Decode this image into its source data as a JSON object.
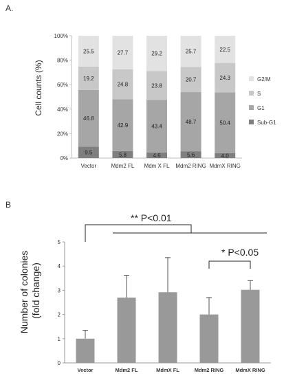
{
  "panel_labels": {
    "a": "A.",
    "b": "B"
  },
  "chart_data": [
    {
      "type": "bar",
      "stacked": true,
      "categories": [
        "Vector",
        "Mdm2 FL",
        "Mdm X FL",
        "Mdm2 RING",
        "MdmX RING"
      ],
      "series": [
        {
          "name": "Sub-G1",
          "values": [
            9.5,
            5.8,
            4.6,
            5.6,
            4.0
          ],
          "color": "#7f7f7f"
        },
        {
          "name": "G1",
          "values": [
            46.8,
            42.9,
            43.4,
            48.7,
            50.4
          ],
          "color": "#a6a6a6"
        },
        {
          "name": "S",
          "values": [
            19.2,
            24.8,
            23.8,
            20.7,
            24.3
          ],
          "color": "#c8c8c8"
        },
        {
          "name": "G2/M",
          "values": [
            25.5,
            27.7,
            29.2,
            25.7,
            22.5
          ],
          "color": "#e2e2e2"
        }
      ],
      "ylabel": "Cell counts (%)",
      "ylim": [
        0,
        100
      ],
      "yticks": [
        "0%",
        "20%",
        "40%",
        "60%",
        "80%",
        "100%"
      ],
      "legend": [
        "G2/M",
        "S",
        "G1",
        "Sub-G1"
      ],
      "legend_position": "right",
      "grid": false
    },
    {
      "type": "bar",
      "categories": [
        "Vector",
        "Mdm2 FL",
        "MdmX FL",
        "Mdm2 RING",
        "MdmX RING"
      ],
      "values": [
        1.0,
        2.7,
        2.92,
        2.0,
        3.02
      ],
      "error": [
        0.35,
        0.92,
        1.43,
        0.7,
        0.38
      ],
      "color": "#999999",
      "ylabel": "Number of colonies (fold change)",
      "ylim": [
        0,
        5
      ],
      "yticks": [
        "0",
        "1",
        "2",
        "3",
        "4",
        "5"
      ],
      "grid": false,
      "annotations": [
        "** P<0.01",
        "* P<0.05"
      ]
    }
  ]
}
